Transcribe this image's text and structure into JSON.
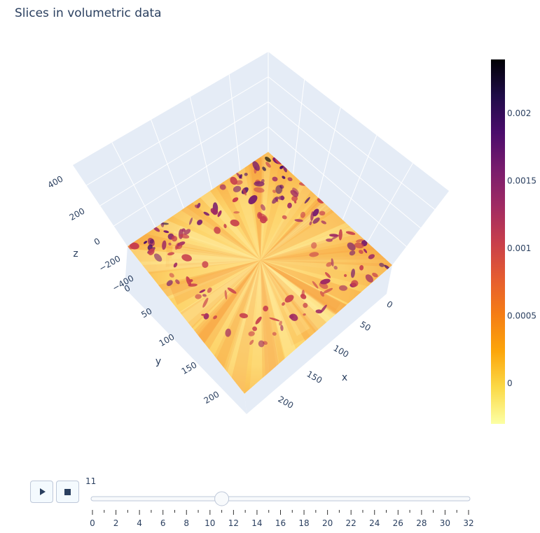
{
  "title": "Slices in volumetric data",
  "colors": {
    "scene_bg": "#e5ecf6",
    "grid": "#ffffff",
    "text": "#2a3f5f",
    "slider_rail": "#f8fafc"
  },
  "chart_data": {
    "type": "heatmap",
    "chart_subtype": "3d-surface-slice",
    "title": "Slices in volumetric data",
    "colorscale": "inferno-reversed",
    "axes": {
      "x": {
        "title": "x",
        "ticks": [
          "0",
          "50",
          "100",
          "150",
          "200"
        ],
        "range": [
          0,
          237
        ]
      },
      "y": {
        "title": "y",
        "ticks": [
          "0",
          "50",
          "100",
          "150",
          "200"
        ],
        "range": [
          0,
          237
        ]
      },
      "z": {
        "title": "z",
        "ticks": [
          "−400",
          "−200",
          "0",
          "200",
          "400"
        ],
        "range": [
          -480,
          480
        ]
      }
    },
    "colorbar": {
      "ticks": [
        "0",
        "0.0005",
        "0.001",
        "0.0015",
        "0.002"
      ],
      "tick_values": [
        0,
        0.0005,
        0.001,
        0.0015,
        0.002
      ],
      "range": [
        -0.0003,
        0.0024
      ]
    }
  },
  "slider": {
    "current_value_label": "11",
    "current_value": 11,
    "min": 0,
    "max": 32,
    "tick_labels": [
      "0",
      "2",
      "4",
      "6",
      "8",
      "10",
      "12",
      "14",
      "16",
      "18",
      "20",
      "22",
      "24",
      "26",
      "28",
      "30",
      "32"
    ]
  },
  "controls": {
    "play_icon": "play-icon",
    "stop_icon": "stop-icon"
  }
}
